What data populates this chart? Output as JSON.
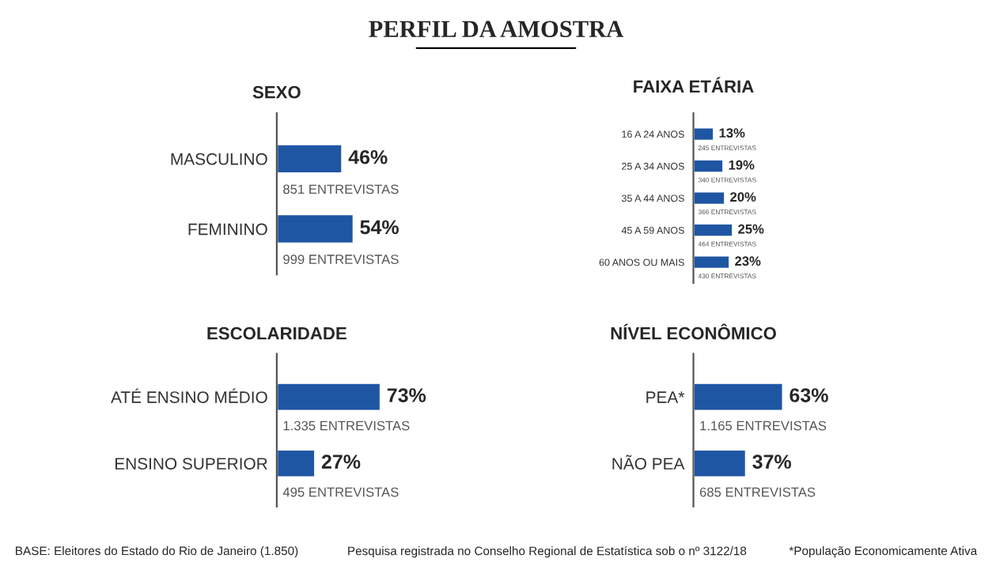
{
  "chart_data": [
    {
      "type": "other",
      "title": "PERFIL DA AMOSTRA",
      "annotations": [
        "BASE: Eleitores do Estado do Rio de Janeiro (1.850)",
        "Pesquisa registrada no Conselho Regional de Estatística sob o nº 3122/18",
        "*População Economicamente Ativa"
      ]
    },
    {
      "type": "bar",
      "orientation": "horizontal",
      "title": "SEXO",
      "categories": [
        "MASCULINO",
        "FEMININO"
      ],
      "values": [
        46,
        54
      ],
      "value_labels": [
        "46%",
        "54%"
      ],
      "color": "#1f56a3",
      "annotations": [
        "851 ENTREVISTAS",
        "999 ENTREVISTAS"
      ]
    },
    {
      "type": "bar",
      "orientation": "horizontal",
      "title": "FAIXA ETÁRIA",
      "categories": [
        "16 A 24 ANOS",
        "25 A 34 ANOS",
        "35 A 44 ANOS",
        "45 A 59 ANOS",
        "60 ANOS OU MAIS"
      ],
      "values": [
        13,
        19,
        20,
        25,
        23
      ],
      "value_labels": [
        "13%",
        "19%",
        "20%",
        "25%",
        "23%"
      ],
      "color": "#1f56a3",
      "annotations": [
        "245 ENTREVISTAS",
        "340 ENTREVISTAS",
        "366 ENTREVISTAS",
        "464 ENTREVISTAS",
        "430 ENTREVISTAS"
      ]
    },
    {
      "type": "bar",
      "orientation": "horizontal",
      "title": "ESCOLARIDADE",
      "categories": [
        "ATÉ ENSINO MÉDIO",
        "ENSINO SUPERIOR"
      ],
      "values": [
        73,
        27
      ],
      "value_labels": [
        "73%",
        "27%"
      ],
      "color": "#1f56a3",
      "annotations": [
        "1.335 ENTREVISTAS",
        "495 ENTREVISTAS"
      ]
    },
    {
      "type": "bar",
      "orientation": "horizontal",
      "title": "NÍVEL ECONÔMICO",
      "categories": [
        "PEA*",
        "NÃO PEA"
      ],
      "values": [
        63,
        37
      ],
      "value_labels": [
        "63%",
        "37%"
      ],
      "color": "#1f56a3",
      "annotations": [
        "1.165 ENTREVISTAS",
        "685 ENTREVISTAS"
      ]
    }
  ]
}
